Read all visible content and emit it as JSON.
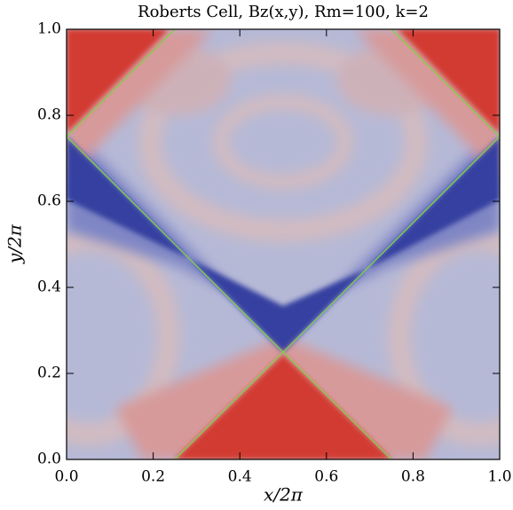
{
  "chart_data": {
    "type": "contour",
    "title": "Roberts Cell, Bz(x,y), Rm=100, k=2",
    "x_label": "x/2π",
    "y_label": "y/2π",
    "xlim": [
      0,
      1
    ],
    "ylim": [
      0,
      1
    ],
    "xticks": [
      {
        "value": 0,
        "label": "0.0"
      },
      0.2,
      0.4,
      0.6,
      0.8,
      {
        "value": 1,
        "label": "1.0"
      }
    ],
    "yticks": [
      {
        "value": 0,
        "label": "0.0"
      },
      0.2,
      0.4,
      0.6,
      0.8,
      {
        "value": 1,
        "label": "1.0"
      }
    ]
  }
}
